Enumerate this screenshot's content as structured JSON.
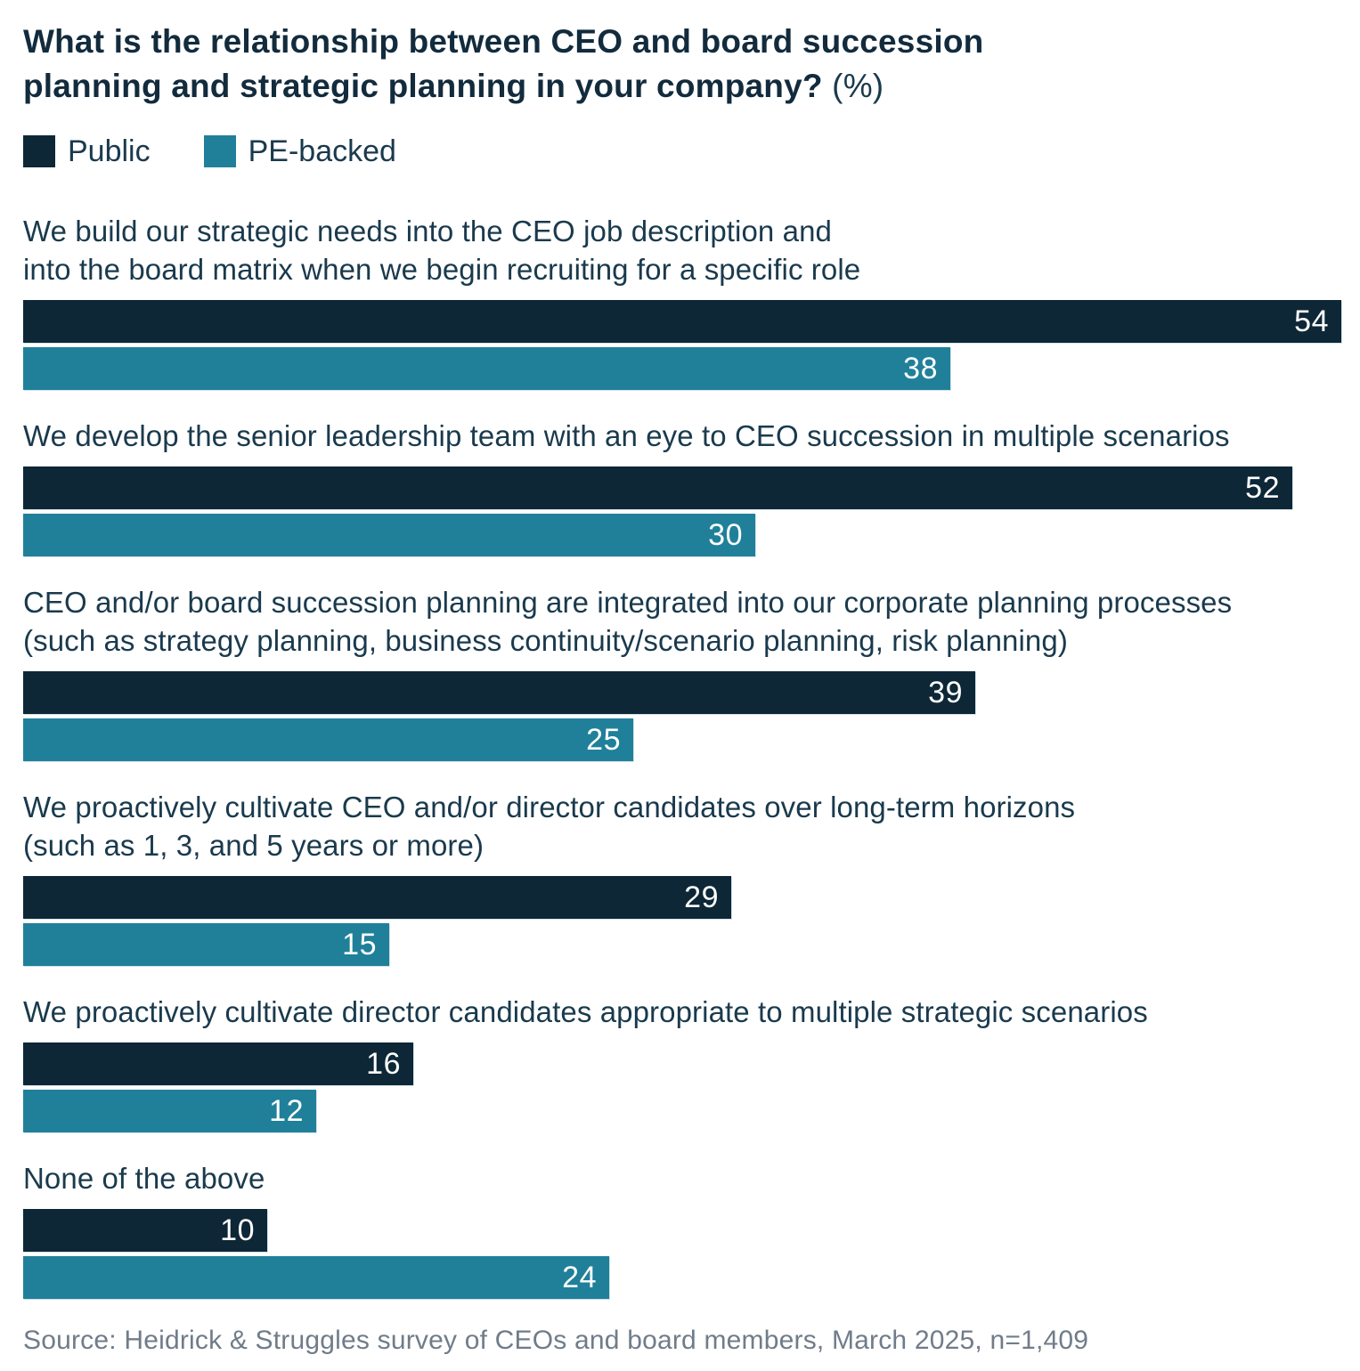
{
  "chart_data": {
    "type": "bar",
    "orientation": "horizontal",
    "unit": "%",
    "title": "What is the relationship between CEO and board succession planning and strategic planning in your company? (%)",
    "title_display": {
      "line1": "What is the relationship between CEO and board succession",
      "line2_bold": "planning and strategic planning in your company?",
      "suffix": "(%)"
    },
    "legend_position": "top-left",
    "value_labels": "inside-end",
    "x_range": [
      0,
      54
    ],
    "grid": false,
    "series": [
      {
        "name": "Public",
        "color": "#0d2737",
        "values": [
          54,
          52,
          39,
          29,
          16,
          10
        ]
      },
      {
        "name": "PE-backed",
        "color": "#20809a",
        "values": [
          38,
          30,
          25,
          15,
          12,
          24
        ]
      }
    ],
    "categories": [
      "We build our strategic needs into the CEO job description and into the board matrix when we begin recruiting for a specific role",
      "We develop the senior leadership team with an eye to CEO succession in multiple scenarios",
      "CEO and/or board succession planning are integrated into our corporate planning processes (such as strategy planning, business continuity/scenario planning, risk planning)",
      "We proactively cultivate CEO and/or director candidates over long-term horizons (such as 1, 3, and 5 years or more)",
      "We proactively cultivate director candidates appropriate to multiple strategic scenarios",
      "None of the above"
    ],
    "categories_display": [
      [
        "We build our strategic needs into the CEO job description and",
        "into the board matrix when we begin recruiting for a specific role"
      ],
      [
        "We develop the senior leadership team with an eye to CEO succession in multiple scenarios"
      ],
      [
        "CEO and/or board succession planning are integrated into our corporate planning processes",
        "(such as strategy planning, business continuity/scenario planning, risk planning)"
      ],
      [
        "We proactively cultivate CEO and/or director candidates over long-term horizons",
        "(such as 1, 3, and 5 years or more)"
      ],
      [
        "We proactively cultivate director candidates appropriate to multiple strategic scenarios"
      ],
      [
        "None of the above"
      ]
    ],
    "source": "Source: Heidrick & Struggles survey of CEOs and board members, March 2025, n=1,409"
  }
}
